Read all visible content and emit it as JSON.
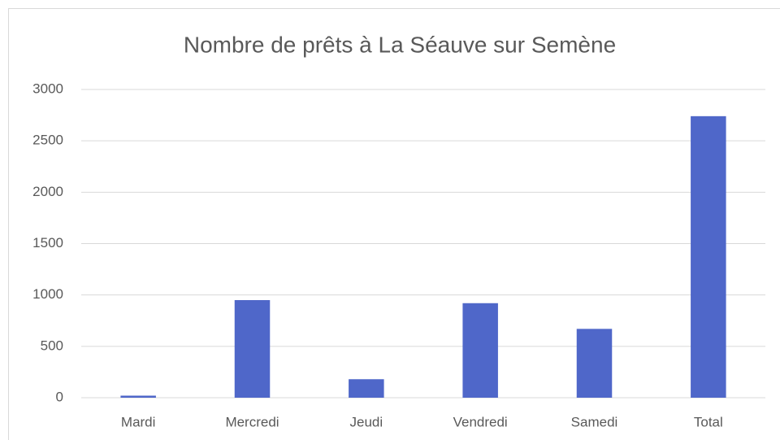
{
  "chart_data": {
    "type": "bar",
    "title": "Nombre de prêts à La Séauve sur Semène",
    "categories": [
      "Mardi",
      "Mercredi",
      "Jeudi",
      "Vendredi",
      "Samedi",
      "Total"
    ],
    "values": [
      20,
      950,
      180,
      920,
      670,
      2740
    ],
    "color": "#4f67c9",
    "ylim": [
      0,
      3000
    ],
    "yticks": [
      0,
      500,
      1000,
      1500,
      2000,
      2500,
      3000
    ],
    "grid": true
  }
}
